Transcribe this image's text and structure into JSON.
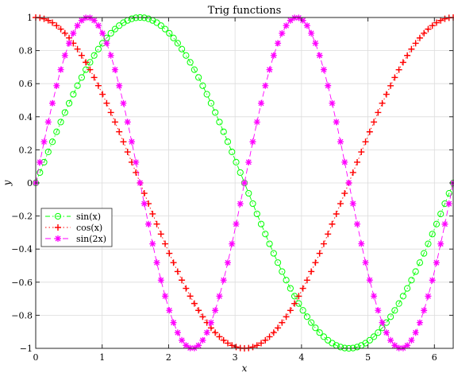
{
  "chart_data": {
    "type": "line",
    "title": "Trig functions",
    "xlabel": "x",
    "ylabel": "y",
    "xlim": [
      0,
      6.283
    ],
    "ylim": [
      -1,
      1
    ],
    "xticks": [
      0,
      1,
      2,
      3,
      4,
      5,
      6
    ],
    "xtick_labels": [
      "0",
      "1",
      "2",
      "3",
      "4",
      "5",
      "6"
    ],
    "yticks": [
      -1,
      -0.8,
      -0.6,
      -0.4,
      -0.2,
      0,
      0.2,
      0.4,
      0.6,
      0.8,
      1
    ],
    "ytick_labels": [
      "−1",
      "−0.8",
      "−0.6",
      "−0.4",
      "−0.2",
      "0",
      "0.2",
      "0.4",
      "0.6",
      "0.8",
      "1"
    ],
    "grid": true,
    "legend_position": "left-middle",
    "x_range": {
      "start": 0,
      "end": 6.283,
      "count": 101
    },
    "series": [
      {
        "name": "sin(x)",
        "function": "sin(x)",
        "color": "#00ff00",
        "line_style": "dash-dot",
        "marker": "circle"
      },
      {
        "name": "cos(x)",
        "function": "cos(x)",
        "color": "#ff0000",
        "line_style": "dotted",
        "marker": "plus"
      },
      {
        "name": "sin(2x)",
        "function": "sin(2x)",
        "color": "#ff00ff",
        "line_style": "dashed",
        "marker": "asterisk"
      }
    ]
  }
}
